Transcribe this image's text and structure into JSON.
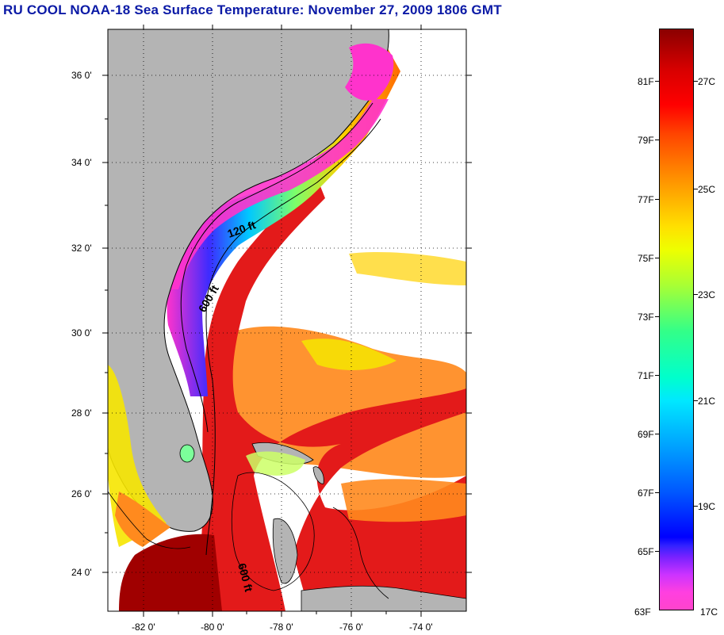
{
  "title": "RU COOL  NOAA-18  Sea Surface Temperature:  November 27, 2009 1806 GMT",
  "map": {
    "lat_labels": [
      "36 0'",
      "34 0'",
      "32 0'",
      "30 0'",
      "28 0'",
      "26 0'",
      "24 0'"
    ],
    "lon_labels": [
      "-82 0'",
      "-80 0'",
      "-78 0'",
      "-76 0'",
      "-74 0'"
    ],
    "contour_labels": [
      "120 ft",
      "600 ft",
      "600 ft"
    ],
    "colors": {
      "land": "#b4b4b4",
      "gulf_stream": "#e31a1a",
      "warm_core": "#a00000",
      "orange": "#ff8a1e",
      "yellow": "#f6e600",
      "nearshore": "#00e0ff",
      "cold": "#ff33cc"
    }
  },
  "colorbar": {
    "fahrenheit_labels": [
      "81F",
      "79F",
      "77F",
      "75F",
      "73F",
      "71F",
      "69F",
      "67F",
      "65F",
      "63F"
    ],
    "celsius_labels": [
      "27C",
      "25C",
      "23C",
      "21C",
      "19C",
      "17C"
    ]
  }
}
